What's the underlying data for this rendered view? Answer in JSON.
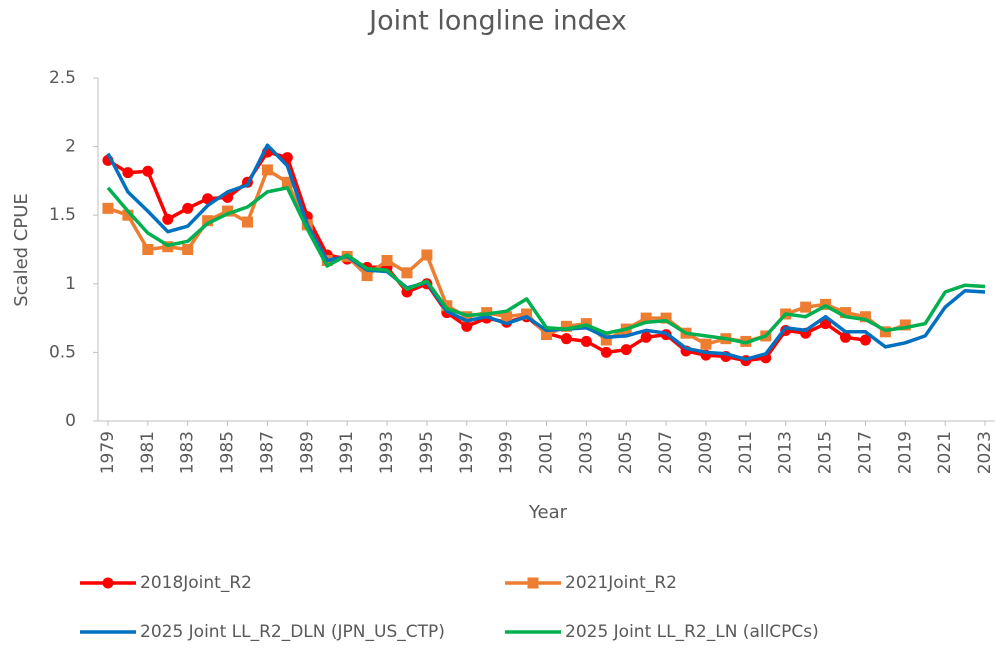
{
  "chart_data": {
    "type": "line",
    "title": "Joint longline index",
    "x_label": "Year",
    "y_label": "Scaled CPUE",
    "x": [
      1979,
      1980,
      1981,
      1982,
      1983,
      1984,
      1985,
      1986,
      1987,
      1988,
      1989,
      1990,
      1991,
      1992,
      1993,
      1994,
      1995,
      1996,
      1997,
      1998,
      1999,
      2000,
      2001,
      2002,
      2003,
      2004,
      2005,
      2006,
      2007,
      2008,
      2009,
      2010,
      2011,
      2012,
      2013,
      2014,
      2015,
      2016,
      2017,
      2018,
      2019,
      2020,
      2021,
      2022,
      2023
    ],
    "xlim": [
      1978.5,
      2023.5
    ],
    "xticks": [
      1979,
      1981,
      1983,
      1985,
      1987,
      1989,
      1991,
      1993,
      1995,
      1997,
      1999,
      2001,
      2003,
      2005,
      2007,
      2009,
      2011,
      2013,
      2015,
      2017,
      2019,
      2021,
      2023
    ],
    "ylim": [
      0,
      2.5
    ],
    "yticks": [
      0,
      0.5,
      1,
      1.5,
      2,
      2.5
    ],
    "grid": false,
    "series": [
      {
        "name": "2018Joint_R2",
        "color": "#ff0000",
        "marker": "circle",
        "values": [
          1.9,
          1.81,
          1.82,
          1.47,
          1.55,
          1.62,
          1.63,
          1.74,
          1.96,
          1.92,
          1.49,
          1.21,
          1.18,
          1.12,
          1.12,
          0.94,
          1.0,
          0.79,
          0.69,
          0.75,
          0.72,
          0.76,
          0.64,
          0.6,
          0.58,
          0.5,
          0.52,
          0.61,
          0.63,
          0.51,
          0.48,
          0.47,
          0.44,
          0.46,
          0.66,
          0.64,
          0.71,
          0.61,
          0.59,
          null,
          null,
          null,
          null,
          null,
          null
        ]
      },
      {
        "name": "2021Joint_R2",
        "color": "#ed7d31",
        "marker": "square",
        "values": [
          1.55,
          1.5,
          1.25,
          1.27,
          1.25,
          1.46,
          1.53,
          1.45,
          1.83,
          1.74,
          1.43,
          1.17,
          1.2,
          1.06,
          1.17,
          1.08,
          1.21,
          0.84,
          0.76,
          0.79,
          0.76,
          0.78,
          0.63,
          0.69,
          0.71,
          0.59,
          0.67,
          0.75,
          0.75,
          0.64,
          0.56,
          0.6,
          0.58,
          0.62,
          0.78,
          0.83,
          0.85,
          0.79,
          0.76,
          0.65,
          0.7,
          null,
          null,
          null,
          null
        ]
      },
      {
        "name": "2025 Joint LL_R2_DLN (JPN_US_CTP)",
        "color": "#0070c0",
        "values": [
          1.95,
          1.67,
          1.53,
          1.38,
          1.42,
          1.57,
          1.67,
          1.72,
          2.01,
          1.86,
          1.43,
          1.17,
          1.2,
          1.1,
          1.09,
          0.97,
          1.01,
          0.8,
          0.73,
          0.76,
          0.71,
          0.76,
          0.66,
          0.67,
          0.68,
          0.61,
          0.62,
          0.66,
          0.64,
          0.53,
          0.5,
          0.49,
          0.45,
          0.49,
          0.68,
          0.66,
          0.76,
          0.65,
          0.65,
          0.54,
          0.57,
          0.62,
          0.83,
          0.95,
          0.94
        ]
      },
      {
        "name": "2025 Joint LL_R2_LN (allCPCs)",
        "color": "#00b050",
        "values": [
          1.7,
          1.53,
          1.37,
          1.28,
          1.31,
          1.44,
          1.51,
          1.56,
          1.67,
          1.7,
          1.4,
          1.13,
          1.21,
          1.11,
          1.1,
          0.96,
          1.02,
          0.82,
          0.77,
          0.78,
          0.8,
          0.89,
          0.68,
          0.67,
          0.7,
          0.64,
          0.67,
          0.72,
          0.73,
          0.64,
          0.62,
          0.6,
          0.57,
          0.62,
          0.78,
          0.76,
          0.84,
          0.76,
          0.74,
          0.66,
          0.68,
          0.71,
          0.94,
          0.99,
          0.98
        ]
      }
    ]
  }
}
